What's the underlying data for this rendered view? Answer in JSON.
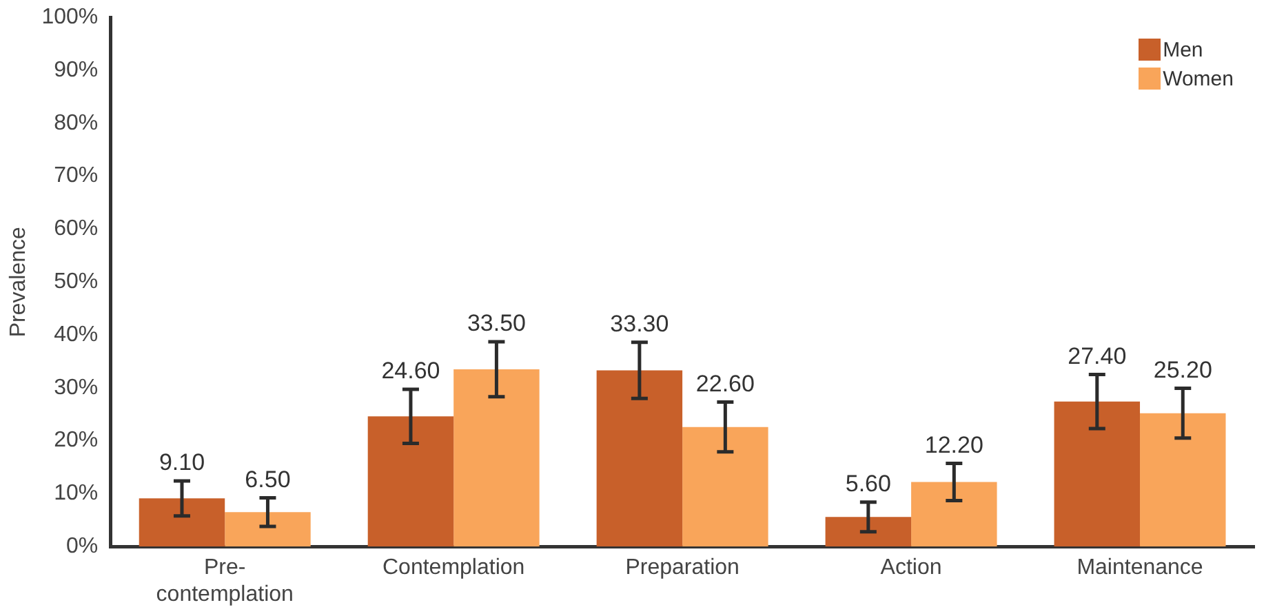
{
  "chart_data": {
    "type": "bar",
    "ylabel": "Prevalence",
    "categories": [
      "Pre-contemplation",
      "Contemplation",
      "Preparation",
      "Action",
      "Maintenance"
    ],
    "series": [
      {
        "name": "Men",
        "color": "#c8602a",
        "values": [
          9.1,
          24.6,
          33.3,
          5.6,
          27.4
        ],
        "errors": [
          3.3,
          5.1,
          5.3,
          2.8,
          5.1
        ],
        "value_labels": [
          "9.10",
          "24.60",
          "33.30",
          "5.60",
          "27.40"
        ]
      },
      {
        "name": "Women",
        "color": "#f9a55a",
        "values": [
          6.5,
          33.5,
          22.6,
          12.2,
          25.2
        ],
        "errors": [
          2.7,
          5.2,
          4.7,
          3.5,
          4.7
        ],
        "value_labels": [
          "6.50",
          "33.50",
          "22.60",
          "12.20",
          "25.20"
        ]
      }
    ],
    "ylim": [
      0,
      100
    ],
    "yticks": [
      {
        "value": 0,
        "label": "0%"
      },
      {
        "value": 10,
        "label": "10%"
      },
      {
        "value": 20,
        "label": "20%"
      },
      {
        "value": 30,
        "label": "30%"
      },
      {
        "value": 40,
        "label": "40%"
      },
      {
        "value": 50,
        "label": "50%"
      },
      {
        "value": 60,
        "label": "60%"
      },
      {
        "value": 70,
        "label": "70%"
      },
      {
        "value": 80,
        "label": "80%"
      },
      {
        "value": 90,
        "label": "90%"
      },
      {
        "value": 100,
        "label": "100%"
      }
    ],
    "grid": false,
    "legend": "top right"
  }
}
